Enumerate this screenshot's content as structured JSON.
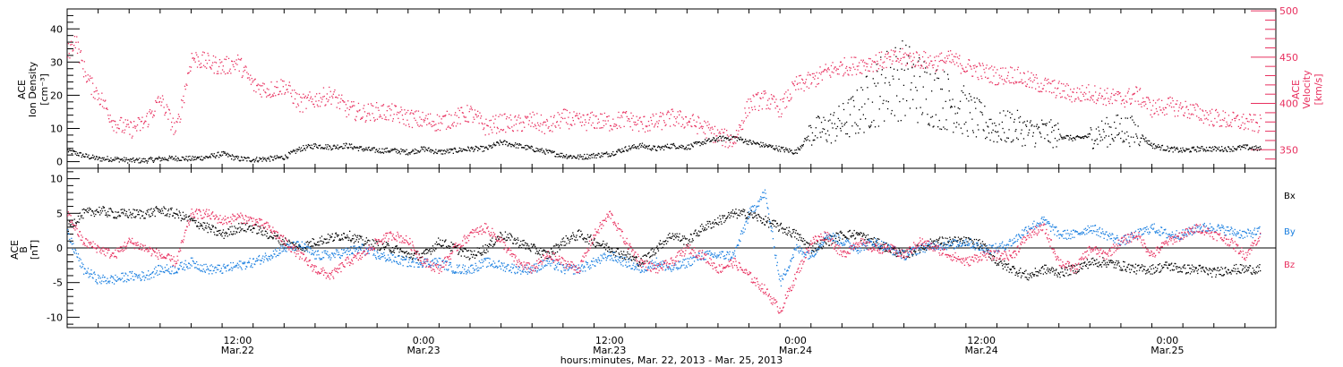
{
  "colors": {
    "bx": "#000000",
    "by": "#1a7fe0",
    "bz": "#e8305f",
    "density": "#000000",
    "velocity": "#e8305f"
  },
  "xlabel": "hours:minutes, Mar. 22, 2013 - Mar. 25, 2013",
  "ticks": [
    {
      "time": "12:00",
      "date": "Mar.22",
      "hours": 12
    },
    {
      "time": "0:00",
      "date": "Mar.23",
      "hours": 24
    },
    {
      "time": "12:00",
      "date": "Mar.23",
      "hours": 36
    },
    {
      "time": "0:00",
      "date": "Mar.24",
      "hours": 48
    },
    {
      "time": "12:00",
      "date": "Mar.24",
      "hours": 60
    },
    {
      "time": "0:00",
      "date": "Mar.25",
      "hours": 72
    }
  ],
  "xrange_hours": [
    1,
    79
  ],
  "chart_data": [
    {
      "type": "scatter",
      "title": "",
      "ylabel": [
        "ACE",
        "Ion Density",
        "[cm⁻³]"
      ],
      "ylim": [
        -2,
        46
      ],
      "yticks": [
        0,
        10,
        20,
        30,
        40
      ],
      "y2label": [
        "ACE",
        "Velocity",
        "[km/s]"
      ],
      "y2lim": [
        330,
        502
      ],
      "y2ticks": [
        350,
        400,
        450,
        500
      ],
      "series": [
        {
          "key": "density",
          "axis": "left",
          "x": [
            1,
            2,
            3,
            4,
            5,
            6,
            7,
            8,
            9,
            10,
            11,
            12,
            13,
            14,
            15,
            16,
            17,
            18,
            19,
            20,
            21,
            22,
            23,
            24,
            25,
            26,
            27,
            28,
            29,
            30,
            31,
            32,
            33,
            34,
            35,
            36,
            37,
            38,
            39,
            40,
            41,
            42,
            43,
            44,
            45,
            46,
            47,
            48,
            49,
            50,
            51,
            52,
            53,
            54,
            55,
            56,
            57,
            58,
            59,
            60,
            61,
            62,
            63,
            64,
            65,
            66,
            67,
            68,
            69,
            70,
            71,
            72,
            73,
            74,
            75,
            76,
            77,
            78
          ],
          "values": [
            3.5,
            2,
            1,
            1,
            0.5,
            0.5,
            1,
            1.2,
            1,
            1.5,
            2.5,
            1,
            0.8,
            1,
            1.5,
            4,
            5,
            4.5,
            5,
            4,
            3.5,
            3.5,
            3,
            4,
            3,
            3.5,
            4,
            4,
            6,
            5,
            4,
            3,
            2,
            1.5,
            2,
            2.5,
            4,
            5,
            4,
            5,
            4.5,
            6,
            7,
            7.5,
            6,
            5,
            4,
            3,
            9,
            10,
            12,
            15,
            20,
            24,
            25,
            22,
            20,
            18,
            15,
            12,
            10,
            11,
            9,
            9,
            8,
            7,
            8,
            9,
            10,
            9,
            5,
            4,
            3.5,
            4,
            4,
            4,
            4.5,
            4
          ]
        },
        {
          "key": "velocity",
          "axis": "right",
          "x": [
            1,
            1.5,
            2,
            2.5,
            3,
            4,
            5,
            6,
            7,
            8,
            9,
            10,
            11,
            12,
            13,
            14,
            15,
            16,
            17,
            18,
            19,
            20,
            21,
            22,
            23,
            24,
            25,
            26,
            27,
            28,
            29,
            30,
            31,
            32,
            33,
            34,
            35,
            36,
            37,
            38,
            39,
            40,
            41,
            42,
            43,
            44,
            45,
            46,
            47,
            48,
            49,
            50,
            51,
            52,
            53,
            54,
            55,
            56,
            57,
            58,
            59,
            60,
            61,
            62,
            63,
            64,
            65,
            66,
            67,
            68,
            69,
            70,
            71,
            72,
            73,
            74,
            75,
            76,
            77,
            78
          ],
          "values": [
            455,
            470,
            440,
            420,
            410,
            380,
            372,
            380,
            405,
            370,
            450,
            445,
            440,
            445,
            420,
            415,
            420,
            400,
            405,
            410,
            395,
            390,
            392,
            390,
            385,
            382,
            380,
            385,
            390,
            375,
            380,
            378,
            382,
            375,
            385,
            380,
            382,
            380,
            384,
            378,
            380,
            385,
            382,
            375,
            365,
            360,
            400,
            405,
            395,
            420,
            425,
            435,
            440,
            442,
            445,
            448,
            450,
            448,
            445,
            448,
            440,
            435,
            430,
            432,
            425,
            420,
            415,
            410,
            412,
            408,
            405,
            410,
            395,
            398,
            395,
            390,
            385,
            382,
            380,
            378
          ]
        }
      ]
    },
    {
      "type": "scatter",
      "title": "",
      "ylabel": [
        "ACE",
        "B",
        "[nT]"
      ],
      "ylim": [
        -11.5,
        11.5
      ],
      "yticks": [
        -10,
        -5,
        0,
        5,
        10
      ],
      "legend": [
        "Bx",
        "By",
        "Bz"
      ],
      "legend_position": "right",
      "series": [
        {
          "key": "bx",
          "name": "Bx",
          "x": [
            1,
            2,
            3,
            4,
            5,
            6,
            7,
            8,
            9,
            10,
            11,
            12,
            13,
            14,
            15,
            16,
            17,
            18,
            19,
            20,
            21,
            22,
            23,
            24,
            25,
            26,
            27,
            28,
            29,
            30,
            31,
            32,
            33,
            34,
            35,
            36,
            37,
            38,
            39,
            40,
            41,
            42,
            43,
            44,
            45,
            46,
            47,
            48,
            49,
            50,
            51,
            52,
            53,
            54,
            55,
            56,
            57,
            58,
            59,
            60,
            61,
            62,
            63,
            64,
            65,
            66,
            67,
            68,
            69,
            70,
            71,
            72,
            73,
            74,
            75,
            76,
            77,
            78
          ],
          "values": [
            3,
            5,
            5.5,
            5,
            5,
            5,
            5.5,
            5,
            4,
            3,
            2,
            3,
            3,
            2,
            1,
            0,
            1,
            1.5,
            2,
            1,
            0.5,
            0,
            -1,
            -1,
            1,
            0,
            -1,
            0,
            2,
            1,
            0,
            -1,
            1,
            2,
            1,
            0,
            -1,
            -2,
            0,
            2,
            1,
            3,
            4,
            5,
            5,
            4,
            3,
            2,
            0,
            1,
            2,
            2,
            1,
            0,
            -1,
            0,
            1,
            1,
            1,
            0.5,
            -2,
            -3,
            -4,
            -3,
            -3.5,
            -3,
            -2,
            -2,
            -2.5,
            -3,
            -3,
            -2.5,
            -3,
            -3,
            -3.5,
            -3,
            -3,
            -3
          ]
        },
        {
          "key": "by",
          "name": "By",
          "x": [
            1,
            2,
            3,
            4,
            5,
            6,
            7,
            8,
            9,
            10,
            11,
            12,
            13,
            14,
            15,
            16,
            17,
            18,
            19,
            20,
            21,
            22,
            23,
            24,
            25,
            26,
            27,
            28,
            29,
            30,
            31,
            32,
            33,
            34,
            35,
            36,
            37,
            38,
            39,
            40,
            41,
            42,
            43,
            44,
            45,
            46,
            47,
            48,
            49,
            50,
            51,
            52,
            53,
            54,
            55,
            56,
            57,
            58,
            59,
            60,
            61,
            62,
            63,
            64,
            65,
            66,
            67,
            68,
            69,
            70,
            71,
            72,
            73,
            74,
            75,
            76,
            77,
            78
          ],
          "values": [
            2,
            -3,
            -4.5,
            -4.5,
            -4,
            -4,
            -3,
            -3,
            -2,
            -3,
            -3,
            -2.5,
            -2,
            -1,
            0,
            0.5,
            -1,
            -1,
            -0.5,
            0,
            -1,
            -1.5,
            -2,
            -2,
            -2,
            -3,
            -3,
            -2,
            -2.5,
            -3,
            -3,
            -2,
            -3,
            -3,
            -2,
            -1,
            -2,
            -3,
            -2,
            -3,
            -2,
            -1,
            -1,
            -1,
            5,
            8,
            -5,
            0,
            -1,
            2,
            1,
            0,
            1,
            0,
            -1,
            0,
            0.5,
            0.5,
            1,
            0,
            0,
            1,
            3,
            4,
            2,
            2,
            3,
            2,
            1,
            2,
            3,
            2,
            2,
            3,
            3,
            2.5,
            2,
            2.5
          ]
        },
        {
          "key": "bz",
          "name": "Bz",
          "x": [
            1,
            2,
            3,
            4,
            5,
            6,
            7,
            8,
            9,
            10,
            11,
            12,
            13,
            14,
            15,
            16,
            17,
            18,
            19,
            20,
            21,
            22,
            23,
            24,
            25,
            26,
            27,
            28,
            29,
            30,
            31,
            32,
            33,
            34,
            35,
            36,
            37,
            38,
            39,
            40,
            41,
            42,
            43,
            44,
            45,
            46,
            47,
            48,
            49,
            50,
            51,
            52,
            53,
            54,
            55,
            56,
            57,
            58,
            59,
            60,
            61,
            62,
            63,
            64,
            65,
            66,
            67,
            68,
            69,
            70,
            71,
            72,
            73,
            74,
            75,
            76,
            77,
            78
          ],
          "values": [
            5,
            1,
            0,
            -1,
            1,
            0,
            -1,
            -2,
            5,
            5,
            4,
            4.5,
            4,
            3,
            1,
            -1,
            -3,
            -4,
            -2,
            -1,
            1,
            2,
            1,
            -2,
            -3,
            0,
            2,
            3,
            1,
            -2,
            -3,
            -1,
            -2,
            -3,
            2,
            5,
            1,
            -2,
            -3,
            -2,
            0,
            -1,
            -3,
            -2,
            -4,
            -6,
            -9,
            -4,
            1,
            2,
            -1,
            1,
            0,
            0,
            -1,
            1,
            0,
            -1,
            -2,
            -1,
            -1,
            -1,
            2,
            3,
            -2,
            -3,
            0,
            -1,
            1,
            2,
            -1,
            1,
            2,
            3,
            2,
            1,
            -1,
            2
          ]
        }
      ]
    }
  ]
}
